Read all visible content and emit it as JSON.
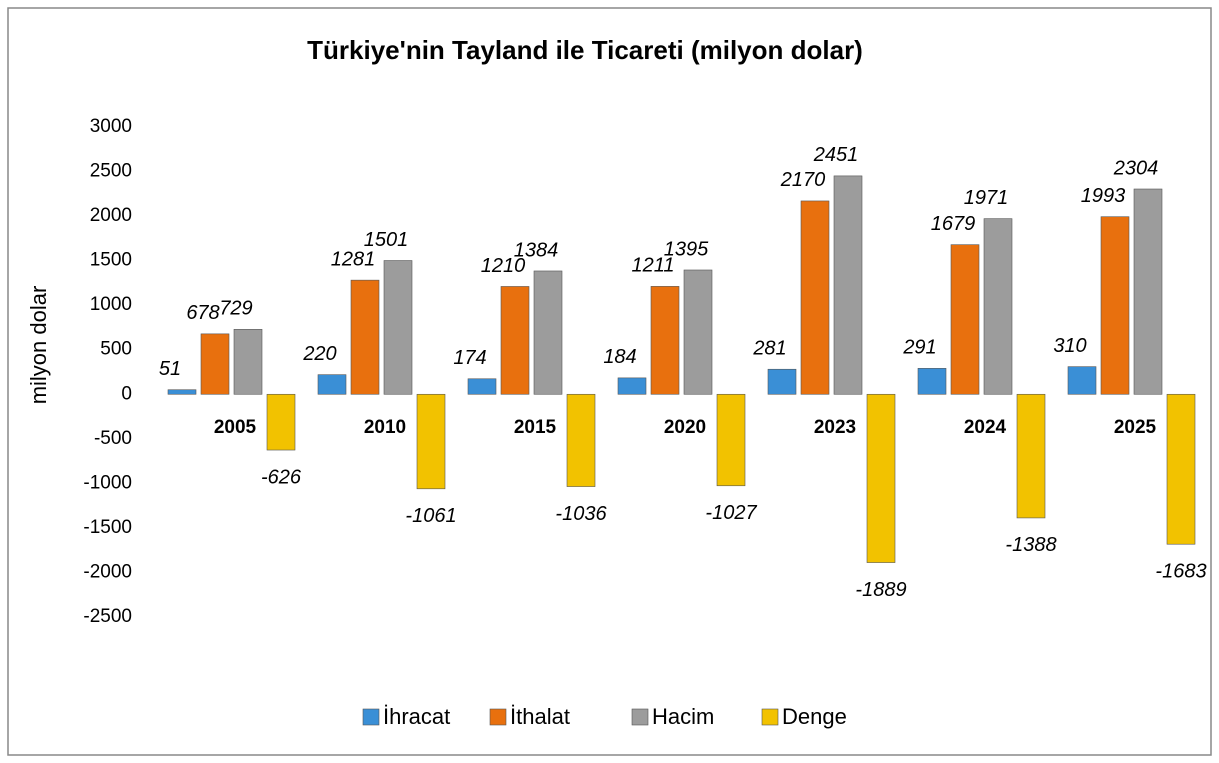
{
  "chart_data": {
    "type": "bar",
    "title": "Türkiye'nin Tayland ile Ticareti (milyon dolar)",
    "y_label": "milyon dolar",
    "categories": [
      "2005",
      "2010",
      "2015",
      "2020",
      "2023",
      "2024",
      "2025"
    ],
    "series": [
      {
        "name": "İhracat",
        "color": "#3a8fd6",
        "values": [
          51,
          220,
          174,
          184,
          281,
          291,
          310
        ]
      },
      {
        "name": "İthalat",
        "color": "#e8700e",
        "values": [
          678,
          1281,
          1210,
          1211,
          2170,
          1679,
          1993
        ]
      },
      {
        "name": "Hacim",
        "color": "#9c9c9c",
        "values": [
          729,
          1501,
          1384,
          1395,
          2451,
          1971,
          2304
        ]
      },
      {
        "name": "Denge",
        "color": "#f2c200",
        "values": [
          -626,
          -1061,
          -1036,
          -1027,
          -1889,
          -1388,
          -1683
        ]
      }
    ],
    "ylim": [
      -2500,
      3000
    ],
    "yticks": [
      -2500,
      -2000,
      -1500,
      -1000,
      -500,
      0,
      500,
      1000,
      1500,
      2000,
      2500,
      3000
    ],
    "grid": false,
    "legend": "bottom"
  }
}
